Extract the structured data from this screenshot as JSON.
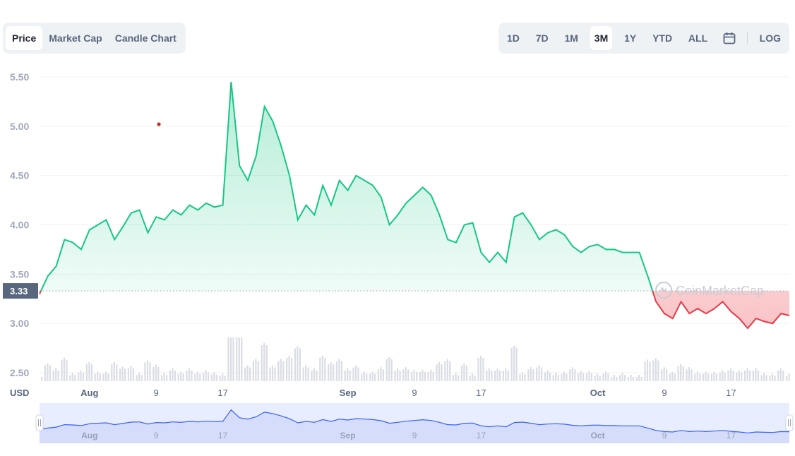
{
  "tabs": {
    "left": [
      "Price",
      "Market Cap",
      "Candle Chart"
    ],
    "left_active": 0,
    "ranges": [
      "1D",
      "7D",
      "1M",
      "3M",
      "1Y",
      "YTD",
      "ALL"
    ],
    "range_active": 3,
    "log_label": "LOG",
    "calendar_icon": "calendar-icon"
  },
  "watermark": "CoinMarketCap",
  "currency_label": "USD",
  "colors": {
    "up": "#16c784",
    "down": "#ea3943",
    "navigator": "#3861fb",
    "price_marker": "#58667e"
  },
  "chart_data": {
    "type": "line",
    "title": "",
    "xlabel": "",
    "ylabel": "",
    "ylim": [
      2.5,
      5.5
    ],
    "yticks": [
      "5.50",
      "5.00",
      "4.50",
      "4.00",
      "3.50",
      "3.00",
      "2.50"
    ],
    "xticks": [
      "Aug",
      "9",
      "17",
      "Sep",
      "9",
      "17",
      "Oct",
      "9",
      "17"
    ],
    "current_price": "3.33",
    "baseline": 3.33,
    "grid": true,
    "series": [
      {
        "x": [
          "Jul 26",
          "Jul 27",
          "Jul 28",
          "Jul 29",
          "Jul 30",
          "Jul 31",
          "Aug 1",
          "Aug 2",
          "Aug 3",
          "Aug 4",
          "Aug 5",
          "Aug 6",
          "Aug 7",
          "Aug 8",
          "Aug 9",
          "Aug 10",
          "Aug 11",
          "Aug 12",
          "Aug 13",
          "Aug 14",
          "Aug 15",
          "Aug 16",
          "Aug 17",
          "Aug 18",
          "Aug 19",
          "Aug 20",
          "Aug 21",
          "Aug 22",
          "Aug 23",
          "Aug 24",
          "Aug 25",
          "Aug 26",
          "Aug 27",
          "Aug 28",
          "Aug 29",
          "Aug 30",
          "Aug 31",
          "Sep 1",
          "Sep 2",
          "Sep 3",
          "Sep 4",
          "Sep 5",
          "Sep 6",
          "Sep 7",
          "Sep 8",
          "Sep 9",
          "Sep 10",
          "Sep 11",
          "Sep 12",
          "Sep 13",
          "Sep 14",
          "Sep 15",
          "Sep 16",
          "Sep 17",
          "Sep 18",
          "Sep 19",
          "Sep 20",
          "Sep 21",
          "Sep 22",
          "Sep 23",
          "Sep 24",
          "Sep 25",
          "Sep 26",
          "Sep 27",
          "Sep 28",
          "Sep 29",
          "Sep 30",
          "Oct 1",
          "Oct 2",
          "Oct 3",
          "Oct 4",
          "Oct 5",
          "Oct 6",
          "Oct 7",
          "Oct 8",
          "Oct 9",
          "Oct 10",
          "Oct 11",
          "Oct 12",
          "Oct 13",
          "Oct 14",
          "Oct 15",
          "Oct 16",
          "Oct 17",
          "Oct 18",
          "Oct 19",
          "Oct 20",
          "Oct 21",
          "Oct 22",
          "Oct 23",
          "Oct 24"
        ],
        "values": [
          3.3,
          3.48,
          3.58,
          3.85,
          3.82,
          3.75,
          3.95,
          4.0,
          4.05,
          3.85,
          3.98,
          4.12,
          4.15,
          3.92,
          4.08,
          4.05,
          4.15,
          4.1,
          4.2,
          4.15,
          4.22,
          4.18,
          4.2,
          5.45,
          4.6,
          4.45,
          4.7,
          5.2,
          5.05,
          4.8,
          4.5,
          4.05,
          4.2,
          4.1,
          4.4,
          4.2,
          4.45,
          4.35,
          4.5,
          4.45,
          4.4,
          4.28,
          4.0,
          4.1,
          4.22,
          4.3,
          4.38,
          4.3,
          4.1,
          3.85,
          3.82,
          4.0,
          4.02,
          3.72,
          3.62,
          3.72,
          3.62,
          4.08,
          4.12,
          4.0,
          3.85,
          3.92,
          3.95,
          3.9,
          3.78,
          3.72,
          3.78,
          3.8,
          3.75,
          3.75,
          3.72,
          3.72,
          3.72,
          3.48,
          3.22,
          3.1,
          3.05,
          3.22,
          3.1,
          3.15,
          3.1,
          3.15,
          3.22,
          3.12,
          3.05,
          2.95,
          3.05,
          3.02,
          3.0,
          3.1,
          3.08
        ]
      }
    ]
  }
}
